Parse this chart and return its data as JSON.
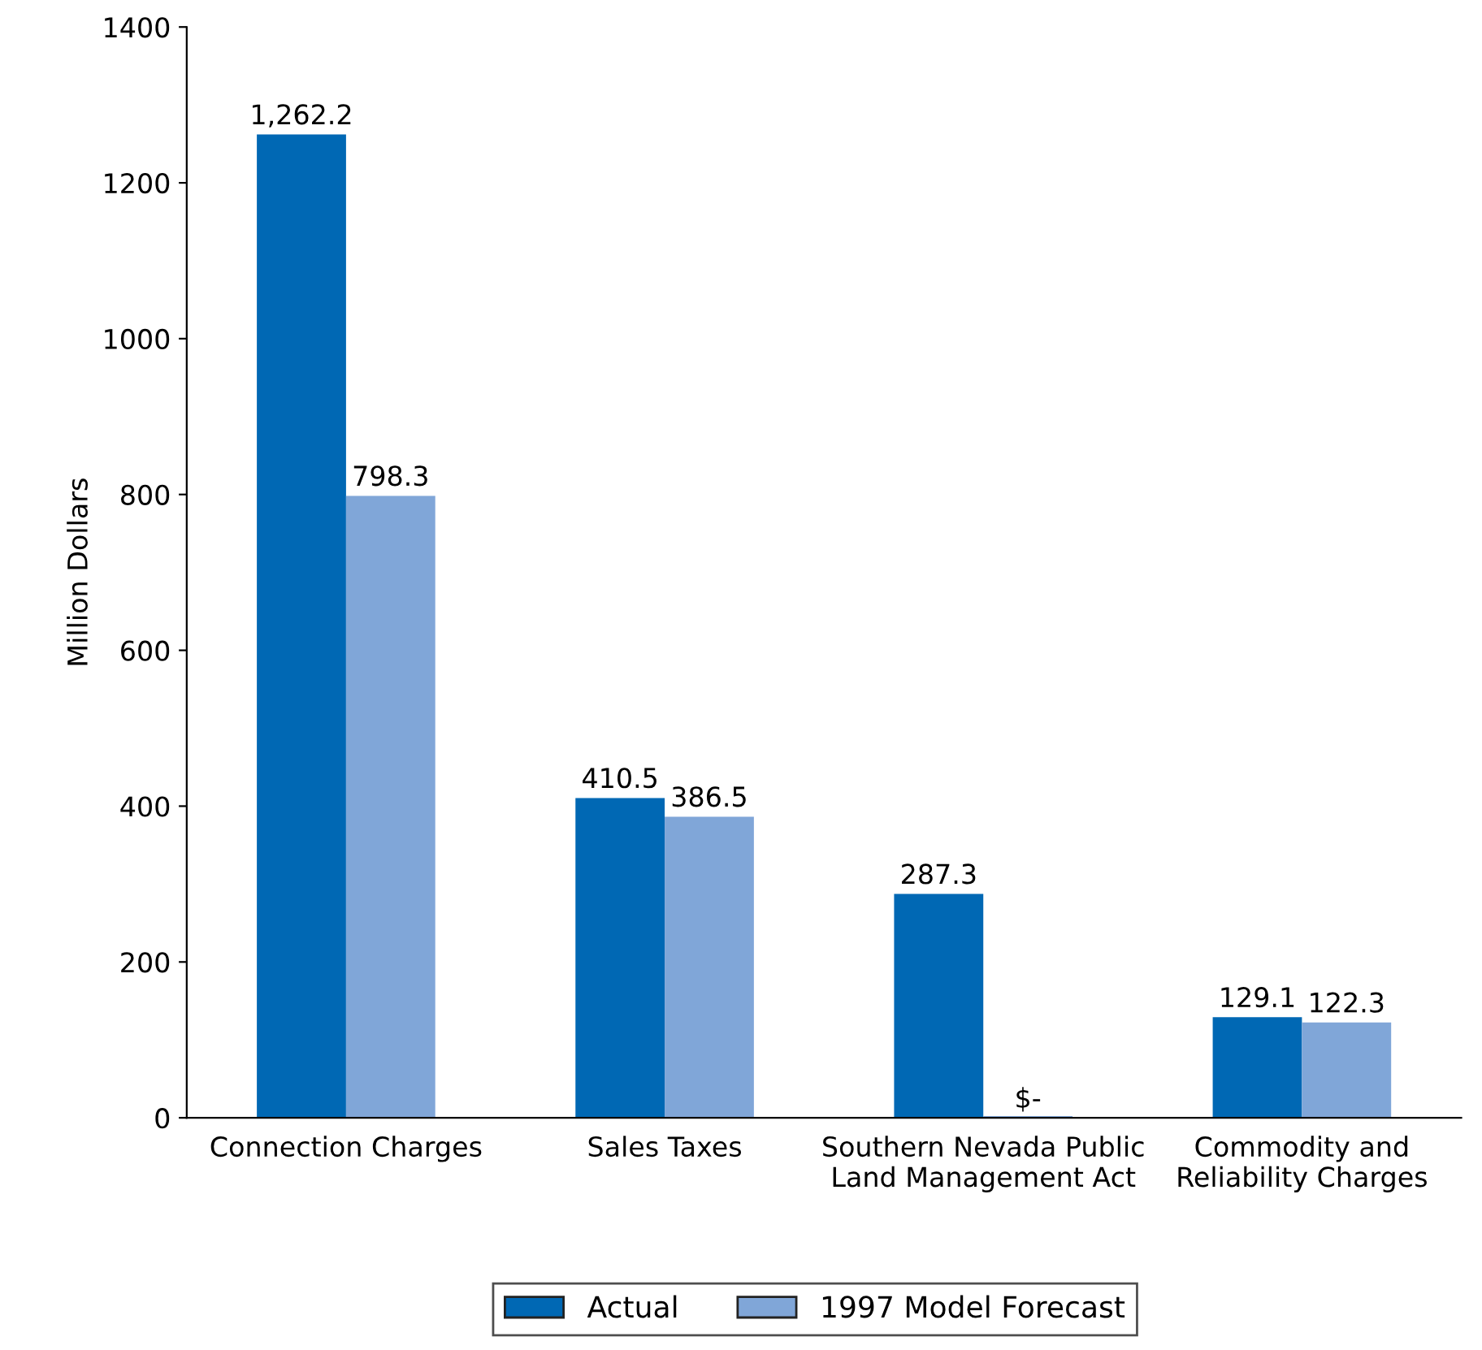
{
  "chart_data": {
    "type": "bar",
    "categories": [
      "Connection Charges",
      "Sales Taxes",
      "Southern Nevada Public\nLand Management Act",
      "Commodity and\nReliability Charges"
    ],
    "ylabel": "Million Dollars",
    "ylim": [
      0,
      1400
    ],
    "yticks": [
      0,
      200,
      400,
      600,
      800,
      1000,
      1200,
      1400
    ],
    "series": [
      {
        "name": "Actual",
        "color": "#0068b4",
        "values": [
          1262.2,
          410.5,
          287.3,
          129.1
        ],
        "value_labels": [
          "1,262.2",
          "410.5",
          "287.3",
          "129.1"
        ]
      },
      {
        "name": "1997 Model Forecast",
        "color": "#80a6d8",
        "values": [
          798.3,
          386.5,
          0,
          122.3
        ],
        "value_labels": [
          "798.3",
          "386.5",
          "$-",
          "122.3"
        ]
      }
    ],
    "grid": false,
    "legend": "bottom"
  }
}
